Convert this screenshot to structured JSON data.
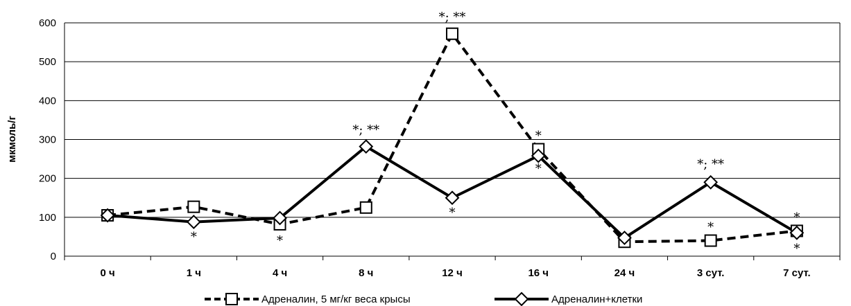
{
  "chart_data": {
    "type": "line",
    "categories": [
      "0 ч",
      "1 ч",
      "4 ч",
      "8 ч",
      "12 ч",
      "16 ч",
      "24 ч",
      "3 сут.",
      "7 сут."
    ],
    "ylabel": "мкмоль/г",
    "ylim": [
      0,
      600
    ],
    "yticks": [
      "0",
      "100",
      "200",
      "300",
      "400",
      "500",
      "600"
    ],
    "grid": "horizontal",
    "legend_position": "bottom",
    "series": [
      {
        "name": "Адреналин, 5 мг/кг веса крысы",
        "style": "dashed",
        "marker": "square",
        "color": "#000000",
        "values": [
          105,
          127,
          82,
          125,
          572,
          275,
          37,
          40,
          65
        ]
      },
      {
        "name": "Адреналин+клетки",
        "style": "solid",
        "marker": "diamond",
        "color": "#000000",
        "values": [
          105,
          88,
          98,
          282,
          150,
          258,
          47,
          190,
          60
        ]
      }
    ],
    "annotations": [
      {
        "category": "1 ч",
        "value": 50,
        "text": "*"
      },
      {
        "category": "4 ч",
        "value": 40,
        "text": "*"
      },
      {
        "category": "8 ч",
        "value": 325,
        "text": "*; **"
      },
      {
        "category": "12 ч",
        "value": 615,
        "text": "*; **"
      },
      {
        "category": "12 ч",
        "value": 112,
        "text": "*"
      },
      {
        "category": "16 ч",
        "value": 310,
        "text": "*"
      },
      {
        "category": "16 ч",
        "value": 225,
        "text": "*"
      },
      {
        "category": "3 сут.",
        "value": 237,
        "text": "*; **"
      },
      {
        "category": "3 сут.",
        "value": 75,
        "text": "*"
      },
      {
        "category": "7 сут.",
        "value": 100,
        "text": "*"
      },
      {
        "category": "7 сут.",
        "value": 20,
        "text": "*"
      }
    ]
  }
}
